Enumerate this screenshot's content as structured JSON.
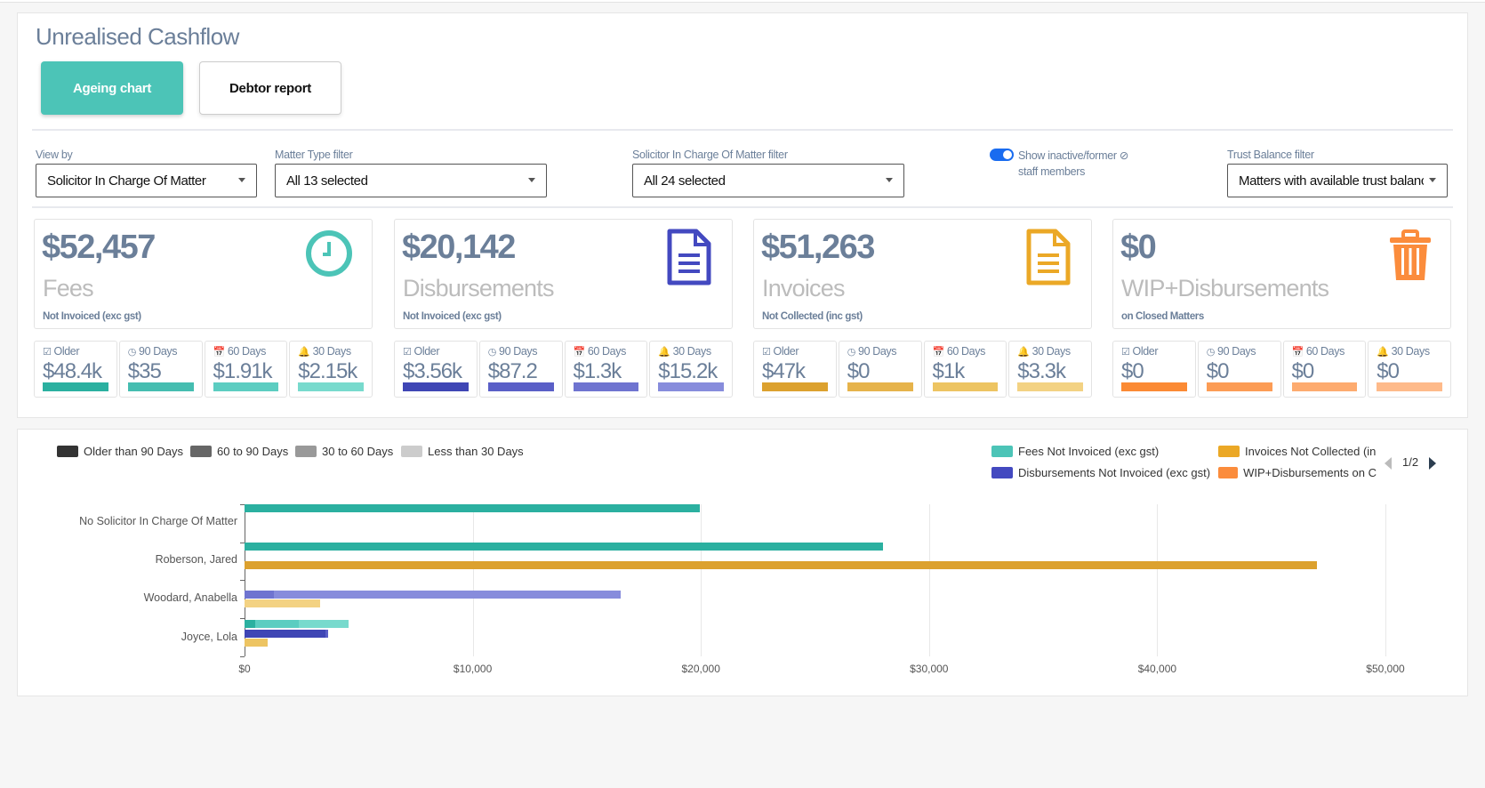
{
  "page": {
    "title": "Unrealised Cashflow"
  },
  "tabs": [
    {
      "label": "Ageing chart",
      "active": true
    },
    {
      "label": "Debtor report",
      "active": false
    }
  ],
  "filters": {
    "view_by": {
      "label": "View by",
      "value": "Solicitor In Charge Of Matter"
    },
    "matter_type": {
      "label": "Matter Type filter",
      "value": "All 13 selected"
    },
    "solicitor": {
      "label": "Solicitor In Charge Of Matter filter",
      "value": "All 24 selected"
    },
    "inactive_toggle": {
      "label_line1": "Show inactive/former",
      "label_line2": "staff members",
      "on": true,
      "icon": "ban-icon"
    },
    "trust": {
      "label": "Trust Balance filter",
      "value": "Matters with available trust balance"
    }
  },
  "age_labels": {
    "older": "Older",
    "d90": "90 Days",
    "d60": "60 Days",
    "d30": "30 Days"
  },
  "stats": [
    {
      "total": "$52,457",
      "name": "Fees",
      "sub": "Not Invoiced (exc gst)",
      "icon": "clock-icon",
      "color": "#4cc4b7",
      "ages": {
        "older": "$48.4k",
        "d90": "$35",
        "d60": "$1.91k",
        "d30": "$2.15k"
      },
      "bar_colors": [
        "#2bb0a0",
        "#45bdb0",
        "#5ccdc1",
        "#78dacd"
      ]
    },
    {
      "total": "$20,142",
      "name": "Disbursements",
      "sub": "Not Invoiced (exc gst)",
      "icon": "document-icon",
      "color": "#4349c0",
      "ages": {
        "older": "$3.56k",
        "d90": "$87.2",
        "d60": "$1.3k",
        "d30": "$15.2k"
      },
      "bar_colors": [
        "#3f46b5",
        "#5a5fc7",
        "#6f74d0",
        "#878cdc"
      ]
    },
    {
      "total": "$51,263",
      "name": "Invoices",
      "sub": "Not Collected (inc gst)",
      "icon": "document-icon",
      "color": "#eba826",
      "ages": {
        "older": "$47k",
        "d90": "$0",
        "d60": "$1k",
        "d30": "$3.3k"
      },
      "bar_colors": [
        "#dca12e",
        "#e6b34b",
        "#edc462",
        "#f3d283"
      ]
    },
    {
      "total": "$0",
      "name": "WIP+Disbursements",
      "sub": "on Closed Matters",
      "icon": "trash-icon",
      "color": "#fb8c3c",
      "ages": {
        "older": "$0",
        "d90": "$0",
        "d60": "$0",
        "d30": "$0"
      },
      "bar_colors": [
        "#fb8a34",
        "#fc9c55",
        "#fdab6f",
        "#feba8a"
      ]
    }
  ],
  "legend": {
    "ages": [
      {
        "label": "Older than 90 Days",
        "color": "#333333"
      },
      {
        "label": "60 to 90 Days",
        "color": "#666666"
      },
      {
        "label": "30 to 60 Days",
        "color": "#999999"
      },
      {
        "label": "Less than 30 Days",
        "color": "#cccccc"
      }
    ],
    "series": [
      {
        "label": "Fees Not Invoiced (exc gst)",
        "color": "#4cc4b7"
      },
      {
        "label": "Invoices Not Collected (in",
        "color": "#eba826"
      },
      {
        "label": "Disbursements Not Invoiced (exc gst)",
        "color": "#4349c0"
      },
      {
        "label": "WIP+Disbursements on C",
        "color": "#fb8c3c"
      }
    ],
    "page": "1/2"
  },
  "chart_data": {
    "type": "bar",
    "orientation": "horizontal",
    "stacked": true,
    "categories": [
      "No Solicitor In Charge Of Matter",
      "Roberson, Jared",
      "Woodard, Anabella",
      "Joyce, Lola"
    ],
    "xlim": [
      0,
      50000
    ],
    "xticks": [
      "$0",
      "$10,000",
      "$20,000",
      "$30,000",
      "$40,000",
      "$50,000"
    ],
    "grid": true,
    "age_buckets": [
      "Older than 90 Days",
      "60 to 90 Days",
      "30 to 60 Days",
      "Less than 30 Days"
    ],
    "series": [
      {
        "name": "Fees Not Invoiced (exc gst)",
        "colors": [
          "#2bb0a0",
          "#45bdb0",
          "#5ccdc1",
          "#78dacd"
        ],
        "values": [
          [
            19950,
            0,
            0,
            0
          ],
          [
            28000,
            0,
            0,
            0
          ],
          [
            0,
            0,
            0,
            0
          ],
          [
            450,
            35,
            1910,
            2150
          ]
        ]
      },
      {
        "name": "Disbursements Not Invoiced (exc gst)",
        "colors": [
          "#3f46b5",
          "#5a5fc7",
          "#6f74d0",
          "#878cdc"
        ],
        "values": [
          [
            0,
            0,
            0,
            0
          ],
          [
            0,
            0,
            0,
            0
          ],
          [
            0,
            0,
            1300,
            15200
          ],
          [
            3560,
            87,
            0,
            0
          ]
        ]
      },
      {
        "name": "Invoices Not Collected (inc gst)",
        "colors": [
          "#dca12e",
          "#e6b34b",
          "#edc462",
          "#f3d283"
        ],
        "values": [
          [
            0,
            0,
            0,
            0
          ],
          [
            47000,
            0,
            0,
            0
          ],
          [
            0,
            0,
            0,
            3300
          ],
          [
            0,
            0,
            1000,
            0
          ]
        ]
      }
    ]
  }
}
